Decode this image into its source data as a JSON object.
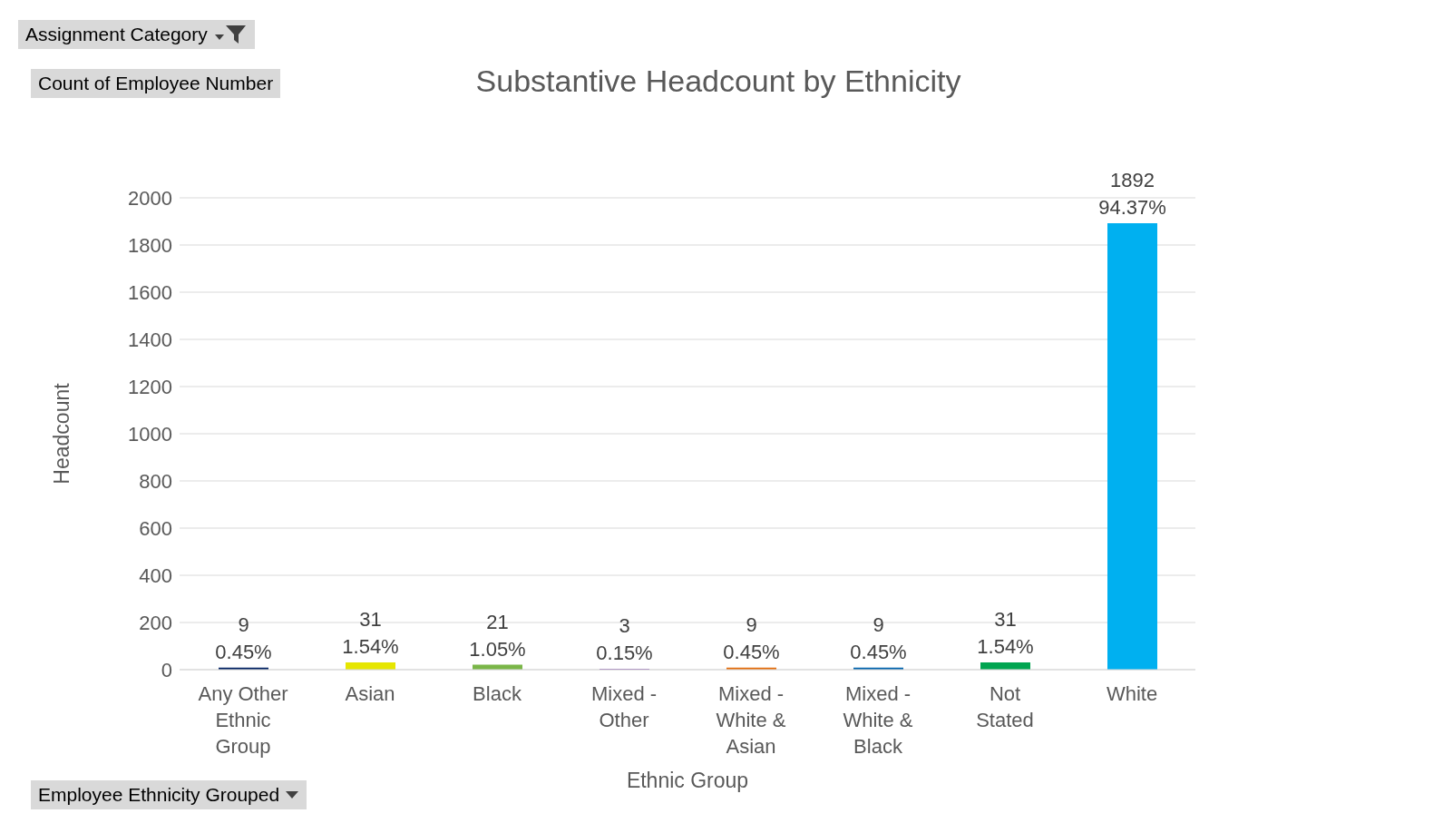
{
  "chart_data": {
    "type": "bar",
    "title": "Substantive Headcount by Ethnicity",
    "xlabel": "Ethnic Group",
    "ylabel": "Headcount",
    "categories": [
      "Any Other Ethnic Group",
      "Asian",
      "Black",
      "Mixed - Other",
      "Mixed - White & Asian",
      "Mixed - White & Black",
      "Not Stated",
      "White"
    ],
    "values": [
      9,
      31,
      21,
      3,
      9,
      9,
      31,
      1892
    ],
    "colors": [
      "#002060",
      "#e6e600",
      "#7ab648",
      "#7030a0",
      "#e46c0a",
      "#0062ac",
      "#00a550",
      "#00b0f0"
    ],
    "value_labels": [
      "9\n0.45%",
      "31\n1.54%",
      "21\n1.05%",
      "3\n0.15%",
      "9\n0.45%",
      "9\n0.45%",
      "31\n1.54%",
      "1892\n94.37%"
    ],
    "ylim": [
      0,
      2000
    ],
    "yticks": [
      0,
      200,
      400,
      600,
      800,
      1000,
      1200,
      1400,
      1600,
      1800,
      2000
    ],
    "grid": "y",
    "annotations": [
      "Assignment Category",
      "Count of Employee Number",
      "Employee Ethnicity Grouped"
    ]
  }
}
